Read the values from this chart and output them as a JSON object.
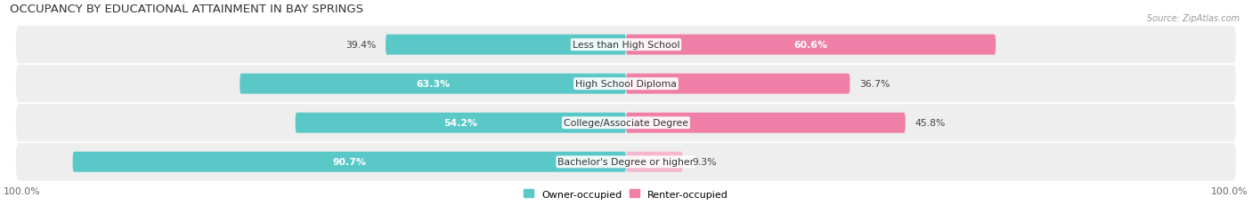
{
  "title": "OCCUPANCY BY EDUCATIONAL ATTAINMENT IN BAY SPRINGS",
  "source": "Source: ZipAtlas.com",
  "categories": [
    "Less than High School",
    "High School Diploma",
    "College/Associate Degree",
    "Bachelor's Degree or higher"
  ],
  "owner_values": [
    39.4,
    63.3,
    54.2,
    90.7
  ],
  "renter_values": [
    60.6,
    36.7,
    45.8,
    9.3
  ],
  "owner_color": "#5bc8c8",
  "renter_color": "#f07fa8",
  "renter_color_light": "#f5b8ce",
  "bg_row_color": "#eeeeee",
  "bar_height": 0.52,
  "title_fontsize": 9.5,
  "label_fontsize": 7.8,
  "legend_fontsize": 8,
  "source_fontsize": 7,
  "axis_label_left": "100.0%",
  "axis_label_right": "100.0%"
}
